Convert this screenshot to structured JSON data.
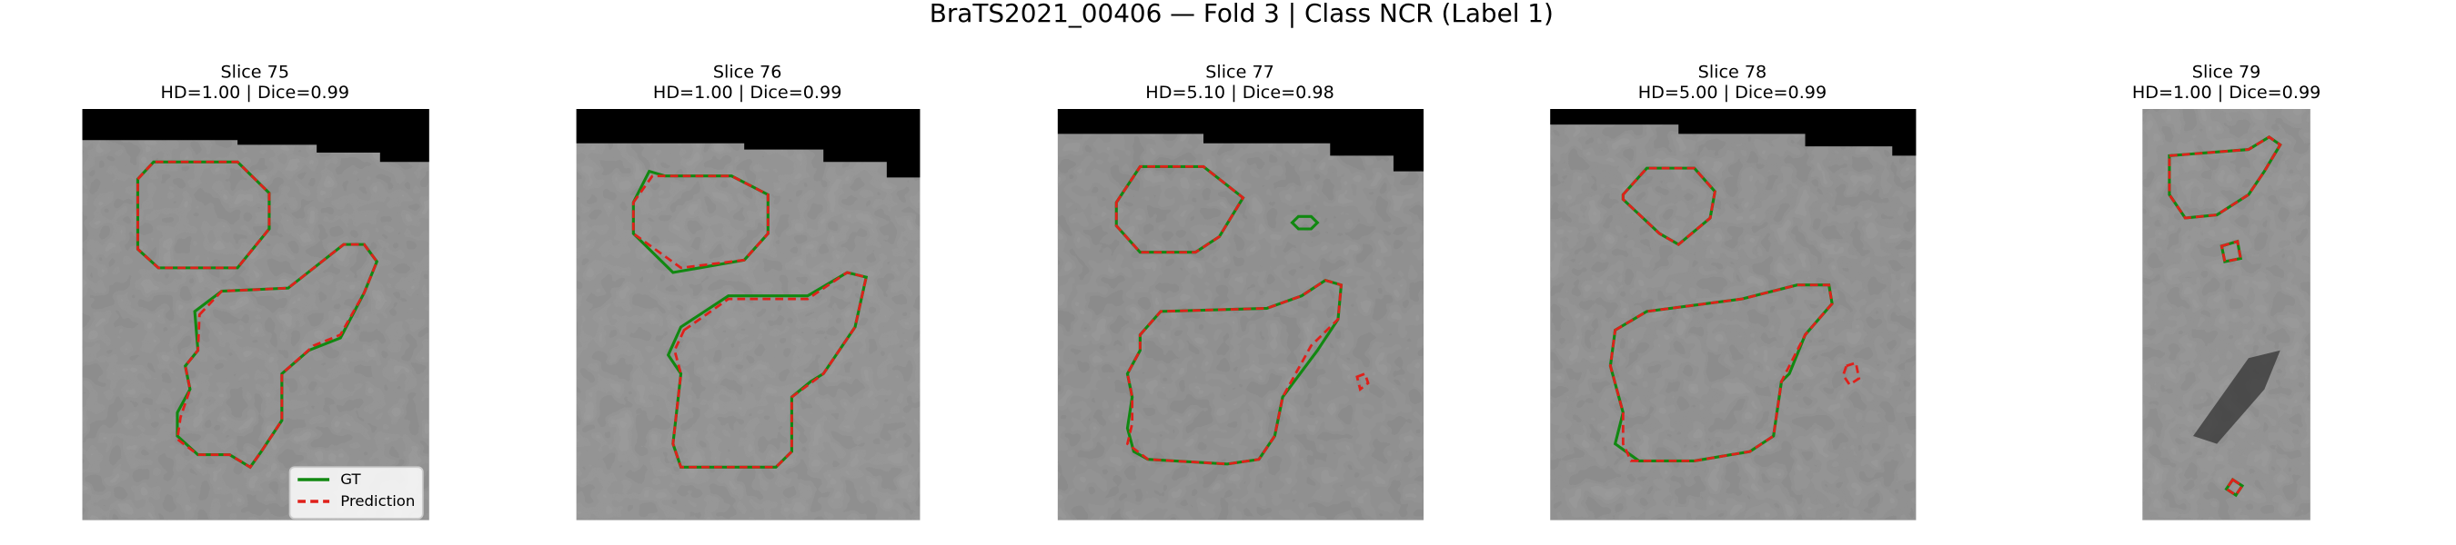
{
  "title": "BraTS2021_00406 — Fold 3 | Class NCR (Label 1)",
  "panels": [
    {
      "slice": "Slice 75",
      "metrics": "HD=1.00 | Dice=0.99"
    },
    {
      "slice": "Slice 76",
      "metrics": "HD=1.00 | Dice=0.99"
    },
    {
      "slice": "Slice 77",
      "metrics": "HD=5.10 | Dice=0.98"
    },
    {
      "slice": "Slice 78",
      "metrics": "HD=5.00 | Dice=0.99"
    },
    {
      "slice": "Slice 79",
      "metrics": "HD=1.00 | Dice=0.99"
    }
  ],
  "legend": [
    "GT",
    "Prediction"
  ]
}
